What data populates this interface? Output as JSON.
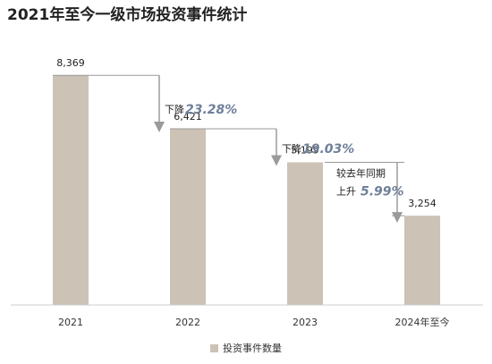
{
  "title": "2021年至今一级市场投资事件统计",
  "chart_data": {
    "type": "bar",
    "categories": [
      "2021",
      "2022",
      "2023",
      "2024年至今"
    ],
    "series": [
      {
        "name": "投资事件数量",
        "values": [
          8369,
          6421,
          5199,
          3254
        ],
        "labels": [
          "8,369",
          "6,421",
          "5,199",
          "3,254"
        ]
      }
    ],
    "ylim": [
      0,
      8800
    ],
    "grid": false,
    "legend_position": "bottom",
    "colors": {
      "bar": "#cdc2b6",
      "connector": "#9a9a9a",
      "accent": "#6f7f99"
    },
    "annotations": [
      {
        "from": 0,
        "to": 1,
        "direction": "down",
        "prefix": "下降",
        "value": "23.28%"
      },
      {
        "from": 1,
        "to": 2,
        "direction": "down",
        "prefix": "下降",
        "value": "19.03%"
      },
      {
        "from": 2,
        "to": 3,
        "direction": "up",
        "prefix_line1": "较去年同期",
        "prefix": "上升",
        "value": "5.99%"
      }
    ]
  }
}
